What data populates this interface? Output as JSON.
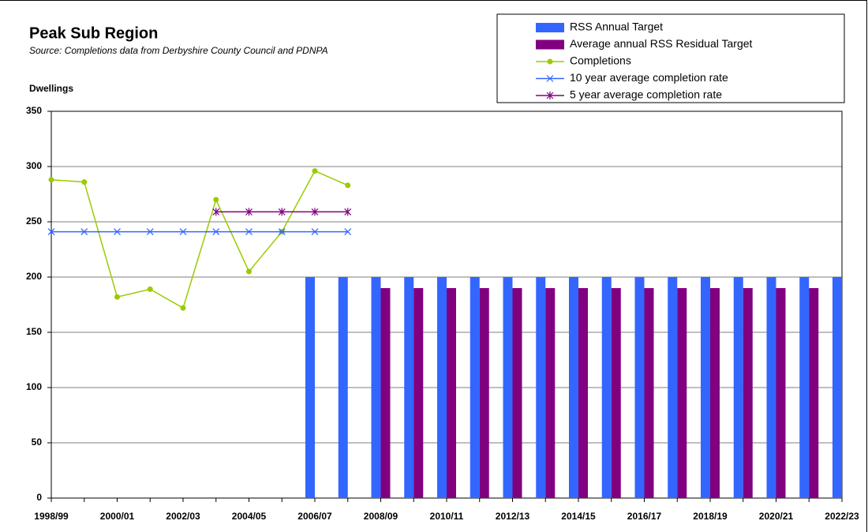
{
  "chart_data": {
    "type": "bar-line",
    "title": "Peak Sub Region",
    "subtitle": "Source: Completions data from Derbyshire County Council and PDNPA",
    "y_label": "Dwellings",
    "categories": [
      "1998/99",
      null,
      "2000/01",
      null,
      "2002/03",
      null,
      "2004/05",
      null,
      "2006/07",
      null,
      "2008/09",
      null,
      "2010/11",
      null,
      "2012/13",
      null,
      "2014/15",
      null,
      "2016/17",
      null,
      "2018/19",
      null,
      "2020/21",
      null,
      "2022/23"
    ],
    "series": [
      {
        "name": "RSS Annual Target",
        "type": "bar",
        "color": "#3366ff",
        "values": [
          null,
          null,
          null,
          null,
          null,
          null,
          null,
          null,
          200,
          200,
          200,
          200,
          200,
          200,
          200,
          200,
          200,
          200,
          200,
          200,
          200,
          200,
          200,
          200,
          200
        ]
      },
      {
        "name": "Average annual RSS Residual Target",
        "type": "bar",
        "color": "#800080",
        "values": [
          null,
          null,
          null,
          null,
          null,
          null,
          null,
          null,
          null,
          null,
          190,
          190,
          190,
          190,
          190,
          190,
          190,
          190,
          190,
          190,
          190,
          190,
          190,
          190,
          null
        ]
      },
      {
        "name": "Completions",
        "type": "line",
        "marker": "circle",
        "color": "#99cc00",
        "values": [
          288,
          286,
          182,
          189,
          172,
          270,
          205,
          241,
          296,
          283,
          null,
          null,
          null,
          null,
          null,
          null,
          null,
          null,
          null,
          null,
          null,
          null,
          null,
          null,
          null
        ]
      },
      {
        "name": "10 year average completion rate",
        "type": "line",
        "marker": "x",
        "color": "#3366ff",
        "values": [
          241,
          241,
          241,
          241,
          241,
          241,
          241,
          241,
          241,
          241,
          null,
          null,
          null,
          null,
          null,
          null,
          null,
          null,
          null,
          null,
          null,
          null,
          null,
          null,
          null
        ]
      },
      {
        "name": "5 year average completion rate",
        "type": "line",
        "marker": "star",
        "color": "#800080",
        "values": [
          null,
          null,
          null,
          null,
          null,
          259,
          259,
          259,
          259,
          259,
          null,
          null,
          null,
          null,
          null,
          null,
          null,
          null,
          null,
          null,
          null,
          null,
          null,
          null,
          null
        ]
      }
    ],
    "ylim": [
      0,
      350
    ],
    "yticks": [
      0,
      50,
      100,
      150,
      200,
      250,
      300,
      350
    ],
    "grid": true,
    "legend": "top-right"
  }
}
